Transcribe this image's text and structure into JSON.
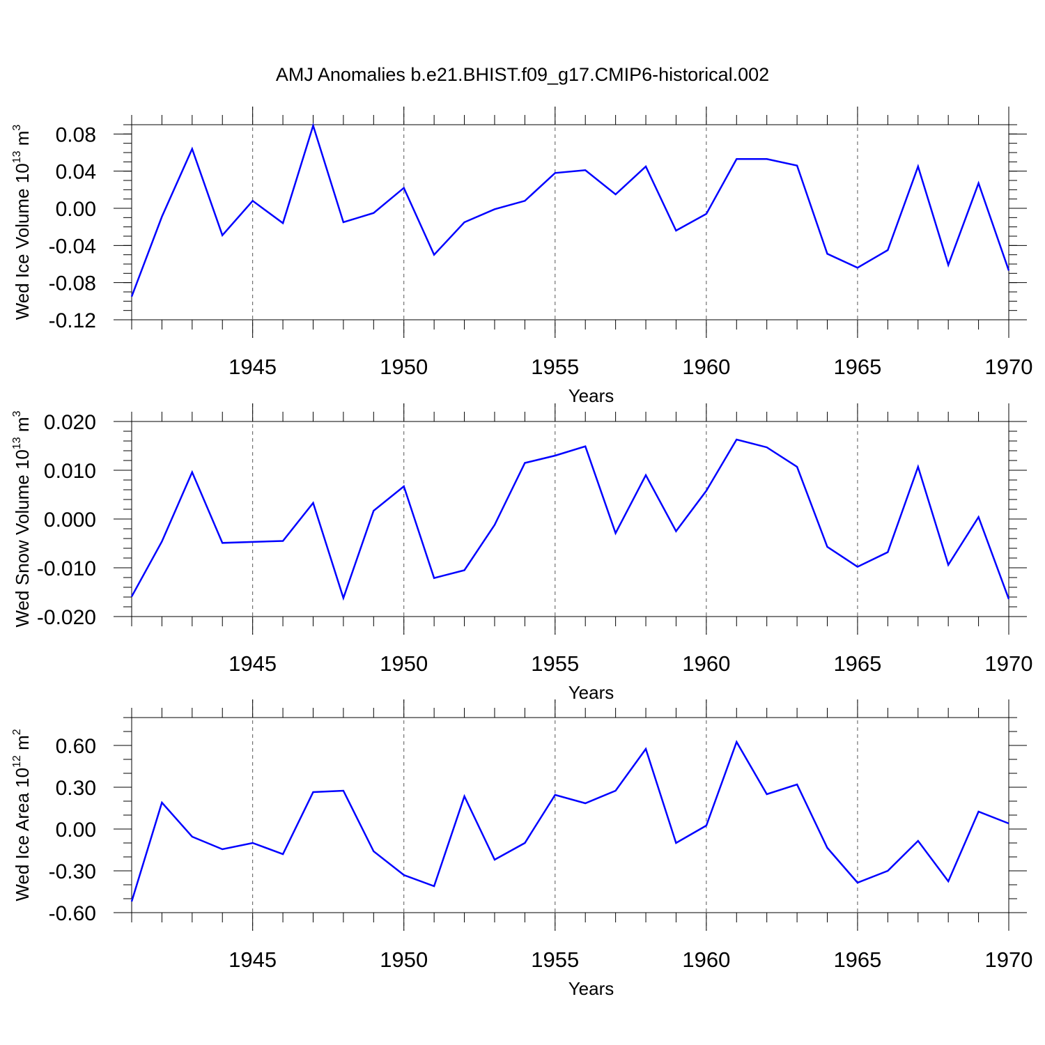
{
  "figure": {
    "title": "AMJ Anomalies b.e21.BHIST.f09_g17.CMIP6-historical.002"
  },
  "chart_data": [
    {
      "type": "line",
      "xlabel": "Years",
      "ylabel": "Wed Ice Volume 10",
      "ylabel_exp": "13",
      "ylabel_unit": "m",
      "ylabel_unit_exp": "3",
      "xlim": [
        1941,
        1970
      ],
      "ylim": [
        -0.12,
        0.09
      ],
      "yticks": [
        -0.12,
        -0.08,
        -0.04,
        0.0,
        0.04,
        0.08
      ],
      "ytick_labels": [
        "-0.12",
        "-0.08",
        "-0.04",
        "0.00",
        "0.04",
        "0.08"
      ],
      "yminor_step": 0.01,
      "xticks": [
        1945,
        1950,
        1955,
        1960,
        1965,
        1970
      ],
      "xtick_labels": [
        "1945",
        "1950",
        "1955",
        "1960",
        "1965",
        "1970"
      ],
      "grid": "vertical dashed",
      "color": "#0000ff",
      "series": [
        {
          "x": [
            1941,
            1942,
            1943,
            1944,
            1945,
            1946,
            1947,
            1948,
            1949,
            1950,
            1951,
            1952,
            1953,
            1954,
            1955,
            1956,
            1957,
            1958,
            1959,
            1960,
            1961,
            1962,
            1963,
            1964,
            1965,
            1966,
            1967,
            1968,
            1969,
            1970
          ],
          "values": [
            -0.095,
            -0.009,
            0.064,
            -0.029,
            0.008,
            -0.016,
            0.089,
            -0.015,
            -0.005,
            0.022,
            -0.05,
            -0.015,
            -0.001,
            0.008,
            0.038,
            0.041,
            0.015,
            0.045,
            -0.024,
            -0.006,
            0.053,
            0.053,
            0.046,
            -0.049,
            -0.064,
            -0.045,
            0.045,
            -0.061,
            0.027,
            -0.067
          ]
        }
      ]
    },
    {
      "type": "line",
      "xlabel": "Years",
      "ylabel": "Wed Snow Volume 10",
      "ylabel_exp": "13",
      "ylabel_unit": "m",
      "ylabel_unit_exp": "3",
      "xlim": [
        1941,
        1970
      ],
      "ylim": [
        -0.02,
        0.02
      ],
      "yticks": [
        -0.02,
        -0.01,
        0.0,
        0.01,
        0.02
      ],
      "ytick_labels": [
        "-0.020",
        "-0.010",
        "0.000",
        "0.010",
        "0.020"
      ],
      "yminor_step": 0.002,
      "xticks": [
        1945,
        1950,
        1955,
        1960,
        1965,
        1970
      ],
      "xtick_labels": [
        "1945",
        "1950",
        "1955",
        "1960",
        "1965",
        "1970"
      ],
      "grid": "vertical dashed",
      "color": "#0000ff",
      "series": [
        {
          "x": [
            1941,
            1942,
            1943,
            1944,
            1945,
            1946,
            1947,
            1948,
            1949,
            1950,
            1951,
            1952,
            1953,
            1954,
            1955,
            1956,
            1957,
            1958,
            1959,
            1960,
            1961,
            1962,
            1963,
            1964,
            1965,
            1966,
            1967,
            1968,
            1969,
            1970
          ],
          "values": [
            -0.0159,
            -0.0046,
            0.0096,
            -0.0049,
            -0.0047,
            -0.0045,
            0.0033,
            -0.0162,
            0.0017,
            0.0067,
            -0.0121,
            -0.0105,
            -0.0012,
            0.0115,
            0.013,
            0.0149,
            -0.0029,
            0.009,
            -0.0025,
            0.0058,
            0.0163,
            0.0147,
            0.0107,
            -0.0057,
            -0.0098,
            -0.0068,
            0.0107,
            -0.0094,
            0.0004,
            -0.0164
          ]
        }
      ]
    },
    {
      "type": "line",
      "xlabel": "Years",
      "ylabel": "Wed Ice Area 10",
      "ylabel_exp": "12",
      "ylabel_unit": "m",
      "ylabel_unit_exp": "2",
      "xlim": [
        1941,
        1970
      ],
      "ylim": [
        -0.6,
        0.8
      ],
      "yticks": [
        -0.6,
        -0.3,
        0.0,
        0.3,
        0.6
      ],
      "ytick_labels": [
        "-0.60",
        "-0.30",
        "0.00",
        "0.30",
        "0.60"
      ],
      "yminor_step": 0.1,
      "xticks": [
        1945,
        1950,
        1955,
        1960,
        1965,
        1970
      ],
      "xtick_labels": [
        "1945",
        "1950",
        "1955",
        "1960",
        "1965",
        "1970"
      ],
      "grid": "vertical dashed",
      "color": "#0000ff",
      "series": [
        {
          "x": [
            1941,
            1942,
            1943,
            1944,
            1945,
            1946,
            1947,
            1948,
            1949,
            1950,
            1951,
            1952,
            1953,
            1954,
            1955,
            1956,
            1957,
            1958,
            1959,
            1960,
            1961,
            1962,
            1963,
            1964,
            1965,
            1966,
            1967,
            1968,
            1969,
            1970
          ],
          "values": [
            -0.52,
            0.19,
            -0.055,
            -0.145,
            -0.1,
            -0.18,
            0.265,
            0.275,
            -0.16,
            -0.33,
            -0.41,
            0.235,
            -0.22,
            -0.1,
            0.245,
            0.185,
            0.275,
            0.575,
            -0.1,
            0.025,
            0.625,
            0.25,
            0.32,
            -0.135,
            -0.385,
            -0.3,
            -0.085,
            -0.375,
            0.125,
            0.04
          ]
        }
      ]
    }
  ]
}
